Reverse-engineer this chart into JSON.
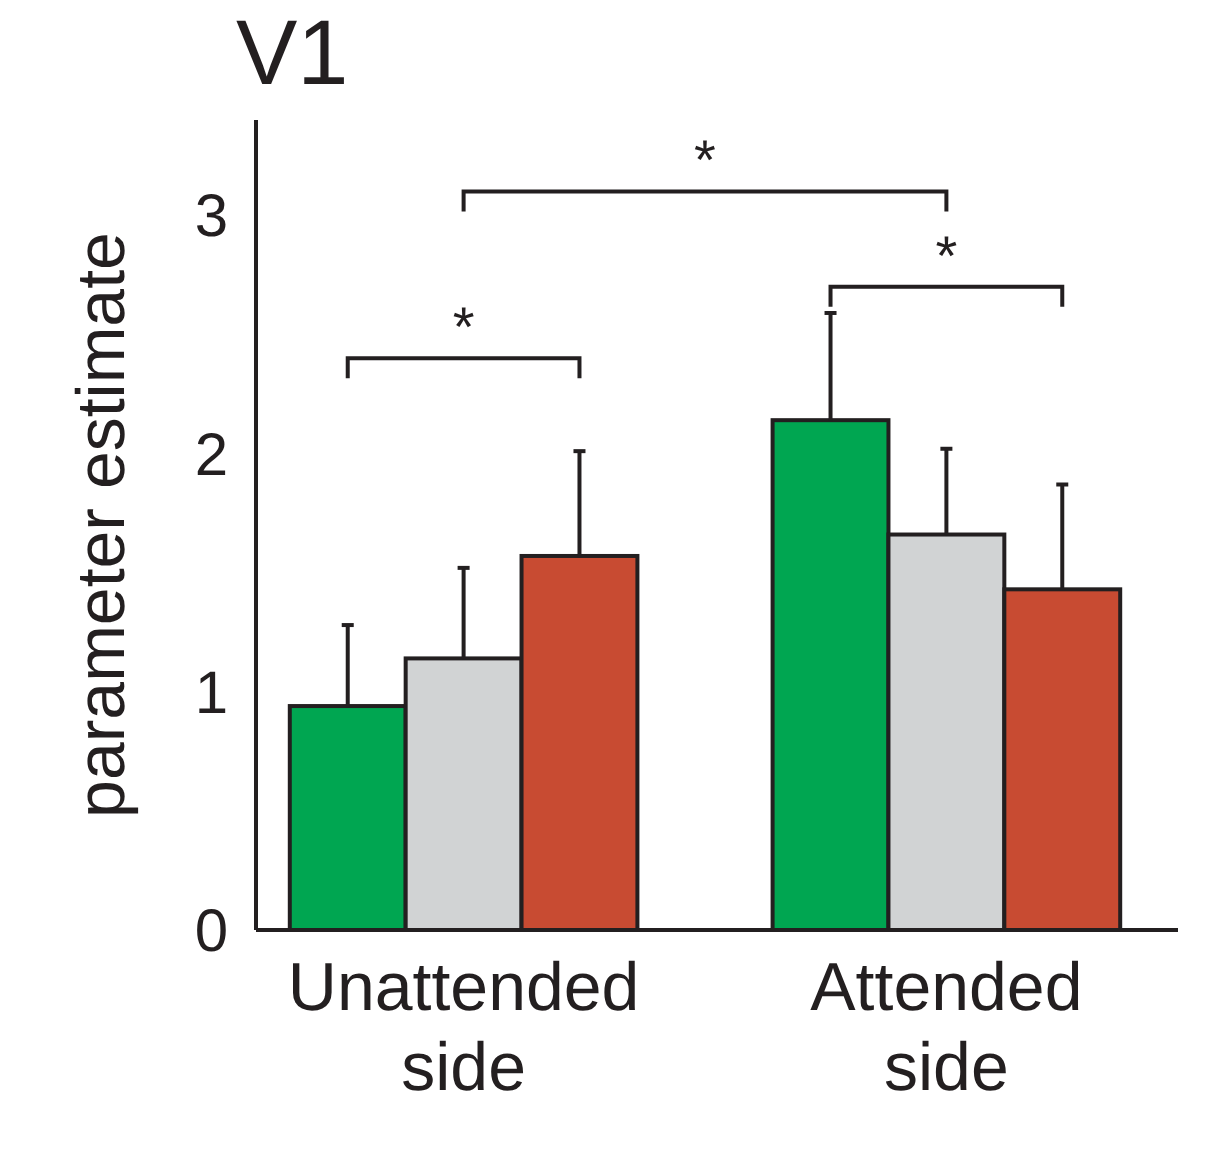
{
  "chart_data": {
    "type": "bar",
    "title": "V1",
    "ylabel": "parameter estimate",
    "categories": [
      "Unattended side",
      "Attended side"
    ],
    "series": [
      {
        "color": "#00a651",
        "values": [
          0.94,
          2.14
        ],
        "errors": [
          [
            0.94,
            1.28
          ],
          [
            2.14,
            2.59
          ]
        ]
      },
      {
        "color": "#d1d3d4",
        "values": [
          1.14,
          1.66
        ],
        "errors": [
          [
            1.14,
            1.52
          ],
          [
            1.66,
            2.02
          ]
        ]
      },
      {
        "color": "#c84b32",
        "values": [
          1.57,
          1.43
        ],
        "errors": [
          [
            1.57,
            2.01
          ],
          [
            1.43,
            1.87
          ]
        ]
      }
    ],
    "ylim": [
      0,
      3.4
    ],
    "yticks": [
      0,
      1,
      2,
      3
    ],
    "annotations": [
      "*",
      "*",
      "*"
    ]
  }
}
